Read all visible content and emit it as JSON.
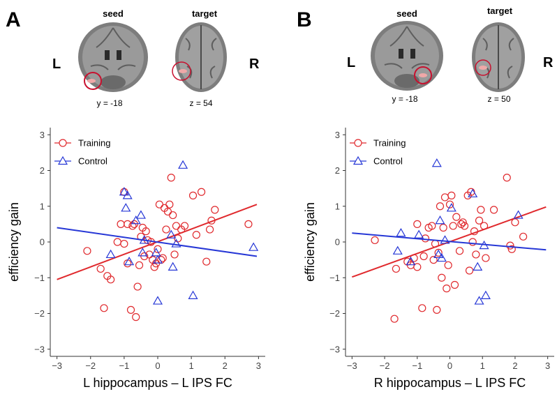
{
  "colors": {
    "training": "#e0292d",
    "control": "#2637d6",
    "axis": "#333333",
    "brain_bg": "#8a8a8a",
    "highlight": "#c8102e"
  },
  "panels": [
    {
      "letter": "A",
      "brain": {
        "seed_title": "seed",
        "target_title": "target",
        "seed_coord": "y = -18",
        "target_coord": "z = 54",
        "left_label": "L",
        "right_label": "R"
      }
    },
    {
      "letter": "B",
      "brain": {
        "seed_title": "seed",
        "target_title": "target",
        "seed_coord": "y = -18",
        "target_coord": "z = 50",
        "left_label": "L",
        "right_label": "R"
      }
    }
  ],
  "chart_data": [
    {
      "type": "scatter",
      "panel": "A",
      "xlabel": "L hippocampus – L IPS FC",
      "ylabel": "efficiency gain",
      "xlim": [
        -3.2,
        3.2
      ],
      "ylim": [
        -3.2,
        3.2
      ],
      "xticks": [
        -3,
        -2,
        -1,
        0,
        1,
        2,
        3
      ],
      "yticks": [
        -3,
        -2,
        -1,
        0,
        1,
        2,
        3
      ],
      "xtick_labels": [
        "−3",
        "−2",
        "−1",
        "0",
        "1",
        "2",
        "3"
      ],
      "ytick_labels": [
        "−3",
        "−2",
        "−1",
        "0",
        "1",
        "2",
        "3"
      ],
      "legend": {
        "position": "top-left",
        "entries": [
          "Training",
          "Control"
        ]
      },
      "series": [
        {
          "name": "Training",
          "marker": "circle",
          "points": [
            [
              -2.1,
              -0.25
            ],
            [
              -1.7,
              -0.75
            ],
            [
              -1.6,
              -1.85
            ],
            [
              -1.5,
              -0.95
            ],
            [
              -1.4,
              -1.05
            ],
            [
              -1.2,
              0.0
            ],
            [
              -1.1,
              0.5
            ],
            [
              -1.0,
              -0.05
            ],
            [
              -1.0,
              1.4
            ],
            [
              -0.9,
              0.5
            ],
            [
              -0.9,
              -0.6
            ],
            [
              -0.8,
              -1.9
            ],
            [
              -0.75,
              0.45
            ],
            [
              -0.7,
              0.5
            ],
            [
              -0.65,
              -2.1
            ],
            [
              -0.6,
              -1.25
            ],
            [
              -0.55,
              -0.65
            ],
            [
              -0.5,
              0.15
            ],
            [
              -0.45,
              0.4
            ],
            [
              -0.4,
              -0.4
            ],
            [
              -0.35,
              0.3
            ],
            [
              -0.3,
              0.05
            ],
            [
              -0.25,
              -0.35
            ],
            [
              -0.2,
              0.0
            ],
            [
              -0.15,
              -0.5
            ],
            [
              -0.1,
              -0.7
            ],
            [
              -0.05,
              -0.6
            ],
            [
              0.0,
              -0.2
            ],
            [
              0.05,
              1.05
            ],
            [
              0.1,
              -0.5
            ],
            [
              0.15,
              -0.45
            ],
            [
              0.2,
              0.95
            ],
            [
              0.25,
              0.35
            ],
            [
              0.3,
              0.85
            ],
            [
              0.35,
              1.05
            ],
            [
              0.4,
              1.8
            ],
            [
              0.45,
              0.75
            ],
            [
              0.5,
              -0.35
            ],
            [
              0.55,
              0.45
            ],
            [
              0.6,
              0.1
            ],
            [
              0.7,
              0.35
            ],
            [
              0.8,
              0.45
            ],
            [
              1.05,
              1.3
            ],
            [
              1.15,
              0.2
            ],
            [
              1.3,
              1.4
            ],
            [
              1.45,
              -0.55
            ],
            [
              1.55,
              0.35
            ],
            [
              1.6,
              0.6
            ],
            [
              1.7,
              0.9
            ],
            [
              2.7,
              0.5
            ]
          ],
          "fit_line": [
            [
              -3.0,
              -1.05
            ],
            [
              2.95,
              1.05
            ]
          ]
        },
        {
          "name": "Control",
          "marker": "triangle",
          "points": [
            [
              -1.4,
              -0.35
            ],
            [
              -1.0,
              1.4
            ],
            [
              -0.95,
              0.95
            ],
            [
              -0.9,
              1.3
            ],
            [
              -0.85,
              -0.55
            ],
            [
              -0.65,
              0.6
            ],
            [
              -0.5,
              0.75
            ],
            [
              -0.45,
              -0.3
            ],
            [
              -0.4,
              0.05
            ],
            [
              -0.05,
              -0.3
            ],
            [
              0.0,
              -0.5
            ],
            [
              0.0,
              -1.65
            ],
            [
              0.4,
              0.2
            ],
            [
              0.45,
              -0.7
            ],
            [
              0.55,
              -0.05
            ],
            [
              0.75,
              2.15
            ],
            [
              1.05,
              -1.5
            ],
            [
              2.85,
              -0.15
            ]
          ],
          "fit_line": [
            [
              -3.0,
              0.4
            ],
            [
              2.95,
              -0.4
            ]
          ]
        }
      ]
    },
    {
      "type": "scatter",
      "panel": "B",
      "xlabel": "R hippocampus – L IPS FC",
      "ylabel": "efficiency gain",
      "xlim": [
        -3.2,
        3.2
      ],
      "ylim": [
        -3.2,
        3.2
      ],
      "xticks": [
        -3,
        -2,
        -1,
        0,
        1,
        2,
        3
      ],
      "yticks": [
        -3,
        -2,
        -1,
        0,
        1,
        2,
        3
      ],
      "xtick_labels": [
        "−3",
        "−2",
        "−1",
        "0",
        "1",
        "2",
        "3"
      ],
      "ytick_labels": [
        "−3",
        "−2",
        "−1",
        "0",
        "1",
        "2",
        "3"
      ],
      "legend": {
        "position": "top-left",
        "entries": [
          "Training",
          "Control"
        ]
      },
      "series": [
        {
          "name": "Training",
          "marker": "circle",
          "points": [
            [
              -2.3,
              0.05
            ],
            [
              -1.7,
              -2.15
            ],
            [
              -1.65,
              -0.75
            ],
            [
              -1.3,
              -0.55
            ],
            [
              -1.2,
              -0.65
            ],
            [
              -1.1,
              -0.45
            ],
            [
              -1.0,
              -0.7
            ],
            [
              -1.0,
              0.5
            ],
            [
              -0.85,
              -1.85
            ],
            [
              -0.8,
              -0.4
            ],
            [
              -0.75,
              0.1
            ],
            [
              -0.65,
              0.4
            ],
            [
              -0.55,
              0.45
            ],
            [
              -0.5,
              -0.5
            ],
            [
              -0.45,
              -0.05
            ],
            [
              -0.4,
              -1.9
            ],
            [
              -0.35,
              -0.3
            ],
            [
              -0.3,
              1.0
            ],
            [
              -0.25,
              -1.0
            ],
            [
              -0.2,
              0.4
            ],
            [
              -0.15,
              1.25
            ],
            [
              -0.1,
              -1.3
            ],
            [
              -0.05,
              -0.65
            ],
            [
              0.0,
              1.05
            ],
            [
              0.05,
              1.3
            ],
            [
              0.1,
              0.45
            ],
            [
              0.15,
              -1.2
            ],
            [
              0.2,
              0.7
            ],
            [
              0.3,
              -0.25
            ],
            [
              0.35,
              0.5
            ],
            [
              0.4,
              0.55
            ],
            [
              0.45,
              0.45
            ],
            [
              0.55,
              1.3
            ],
            [
              0.6,
              -0.8
            ],
            [
              0.65,
              1.4
            ],
            [
              0.7,
              0.0
            ],
            [
              0.75,
              0.3
            ],
            [
              0.8,
              -0.35
            ],
            [
              0.9,
              0.6
            ],
            [
              0.95,
              0.9
            ],
            [
              1.05,
              0.45
            ],
            [
              1.1,
              -0.45
            ],
            [
              1.35,
              0.9
            ],
            [
              1.75,
              1.8
            ],
            [
              1.85,
              -0.1
            ],
            [
              1.9,
              -0.2
            ],
            [
              2.0,
              0.55
            ],
            [
              2.25,
              0.15
            ]
          ],
          "fit_line": [
            [
              -3.0,
              -0.98
            ],
            [
              2.95,
              0.98
            ]
          ]
        },
        {
          "name": "Control",
          "marker": "triangle",
          "points": [
            [
              -1.6,
              -0.25
            ],
            [
              -1.5,
              0.25
            ],
            [
              -1.2,
              -0.55
            ],
            [
              -0.95,
              0.2
            ],
            [
              -0.4,
              2.2
            ],
            [
              -0.35,
              -0.35
            ],
            [
              -0.3,
              0.6
            ],
            [
              -0.25,
              -0.45
            ],
            [
              -0.15,
              0.05
            ],
            [
              0.05,
              0.95
            ],
            [
              0.7,
              1.35
            ],
            [
              0.85,
              -0.7
            ],
            [
              0.9,
              -1.65
            ],
            [
              1.05,
              -0.1
            ],
            [
              1.1,
              -1.5
            ],
            [
              2.1,
              0.75
            ]
          ],
          "fit_line": [
            [
              -3.0,
              0.25
            ],
            [
              2.95,
              -0.22
            ]
          ]
        }
      ]
    }
  ]
}
